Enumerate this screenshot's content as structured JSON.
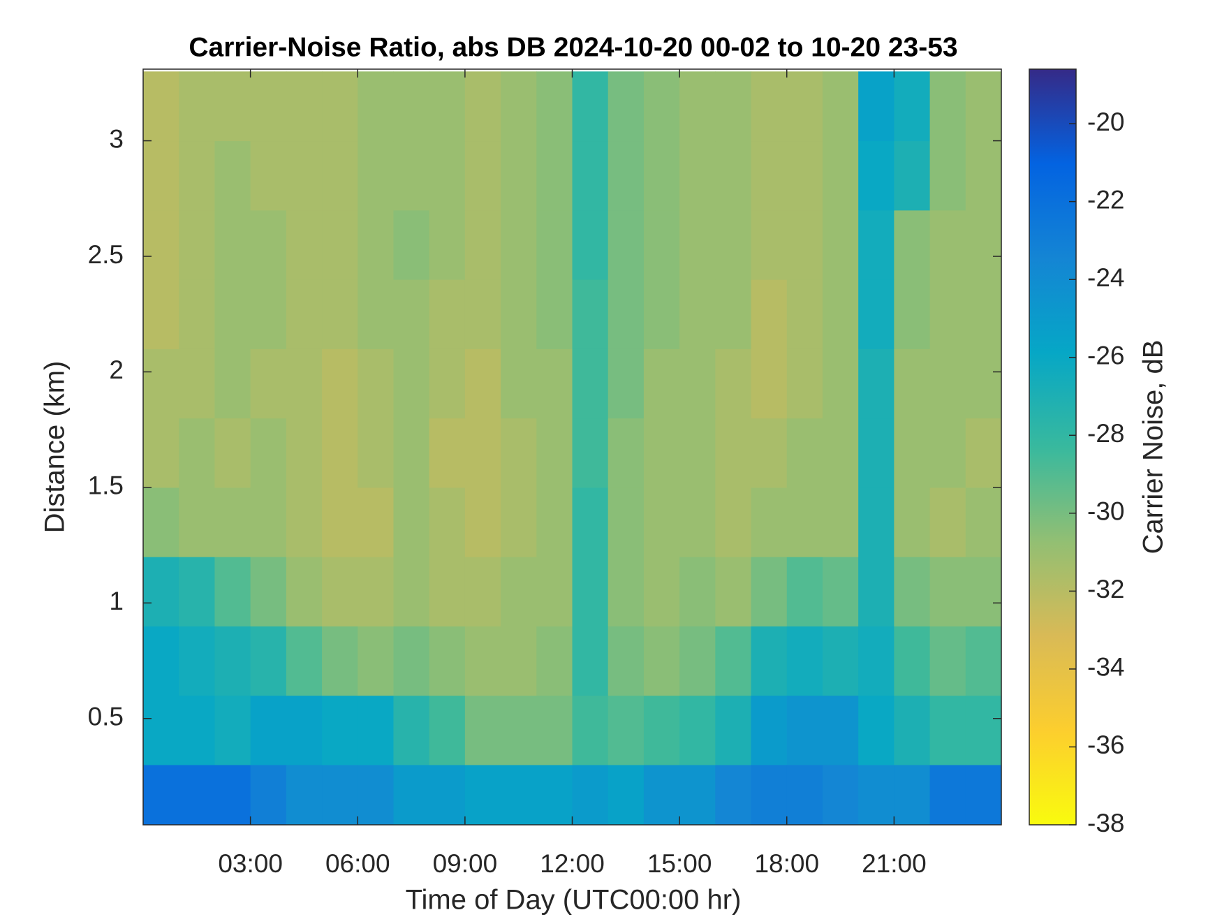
{
  "chart_data": {
    "type": "heatmap",
    "title": "Carrier-Noise Ratio, abs DB 2024-10-20 00-02 to 10-20 23-53",
    "x_label": "Time of Day (UTC00:00 hr)",
    "y_label": "Distance (km)",
    "colorbar_label": "Carrier Noise, dB",
    "x": [
      0.5,
      1.5,
      2.5,
      3.5,
      4.5,
      5.5,
      6.5,
      7.5,
      8.5,
      9.5,
      10.5,
      11.5,
      12.5,
      13.5,
      14.5,
      15.5,
      16.5,
      17.5,
      18.5,
      19.5,
      20.5,
      21.5,
      22.5,
      23.5
    ],
    "y": [
      0.15,
      0.45,
      0.75,
      1.05,
      1.35,
      1.65,
      1.95,
      2.25,
      2.55,
      2.85,
      3.15
    ],
    "values": [
      [
        -22,
        -22,
        -22,
        -23,
        -24,
        -24,
        -24,
        -25,
        -25,
        -25.5,
        -25.5,
        -25.5,
        -25,
        -25.5,
        -24.5,
        -24.5,
        -23.5,
        -23,
        -23,
        -23.5,
        -24,
        -24,
        -22.5,
        -22.5
      ],
      [
        -26,
        -26,
        -26.5,
        -25.5,
        -25.5,
        -26,
        -26,
        -27.5,
        -28.5,
        -30,
        -30,
        -30,
        -28.5,
        -29,
        -28.5,
        -28,
        -27,
        -25,
        -24.5,
        -24.5,
        -26,
        -27,
        -28,
        -28
      ],
      [
        -26,
        -26.5,
        -27,
        -27.5,
        -29,
        -30,
        -30.5,
        -30,
        -30.5,
        -31,
        -31,
        -30.5,
        -28,
        -30,
        -30.5,
        -30,
        -29,
        -27,
        -26.5,
        -27,
        -26.5,
        -28.5,
        -29.5,
        -29
      ],
      [
        -27,
        -27.5,
        -29,
        -30,
        -31,
        -31.5,
        -31.5,
        -31,
        -31.5,
        -31.5,
        -31,
        -31,
        -28,
        -30.5,
        -31,
        -30.5,
        -31,
        -30,
        -29,
        -29.5,
        -27,
        -30,
        -30.5,
        -30.5
      ],
      [
        -30.5,
        -31,
        -31,
        -31,
        -31.5,
        -32,
        -32,
        -31,
        -31.5,
        -32,
        -31.5,
        -31,
        -28,
        -30.5,
        -31,
        -31,
        -31.5,
        -31,
        -31,
        -31,
        -27,
        -31,
        -31.5,
        -31
      ],
      [
        -31.5,
        -31,
        -31.5,
        -31,
        -31.5,
        -32,
        -31.5,
        -31,
        -32,
        -32,
        -31.5,
        -31,
        -28.5,
        -30.5,
        -31,
        -31,
        -31.5,
        -31.5,
        -31,
        -31,
        -27,
        -31,
        -31,
        -31.5
      ],
      [
        -31.5,
        -31.5,
        -31,
        -31.5,
        -31.5,
        -32,
        -31.5,
        -31,
        -31.5,
        -32,
        -31,
        -31,
        -28.5,
        -30,
        -31,
        -31,
        -31.5,
        -32,
        -31.5,
        -31,
        -27,
        -31,
        -31,
        -31
      ],
      [
        -32,
        -31.5,
        -31,
        -31,
        -31.5,
        -31.5,
        -31,
        -31,
        -31.5,
        -31.5,
        -31,
        -30.5,
        -28.5,
        -30,
        -30.5,
        -31,
        -31,
        -32,
        -31.5,
        -31,
        -26.5,
        -30.5,
        -31,
        -31
      ],
      [
        -32,
        -31.5,
        -31,
        -31,
        -31.5,
        -31.5,
        -31,
        -30.5,
        -31,
        -31.5,
        -31,
        -30.5,
        -28,
        -30,
        -30.5,
        -31,
        -31,
        -31.5,
        -31.5,
        -31,
        -26.5,
        -30.5,
        -31,
        -31
      ],
      [
        -32,
        -31.5,
        -31,
        -31.5,
        -31.5,
        -31.5,
        -31,
        -31,
        -31,
        -31.5,
        -31,
        -30.5,
        -28,
        -30,
        -30.5,
        -31,
        -31,
        -31.5,
        -31.5,
        -31,
        -26,
        -27,
        -30.5,
        -31
      ],
      [
        -32,
        -31.5,
        -31.5,
        -31.5,
        -31.5,
        -31.5,
        -31,
        -31,
        -31,
        -31.5,
        -31,
        -30.5,
        -28,
        -30,
        -30.5,
        -31,
        -31,
        -31.5,
        -31.5,
        -31,
        -25.5,
        -26.5,
        -30.5,
        -31
      ]
    ],
    "xlim": [
      0,
      24
    ],
    "ylim": [
      0.04,
      3.31
    ],
    "xticks": [
      {
        "value": 3,
        "label": "03:00"
      },
      {
        "value": 6,
        "label": "06:00"
      },
      {
        "value": 9,
        "label": "09:00"
      },
      {
        "value": 12,
        "label": "12:00"
      },
      {
        "value": 15,
        "label": "15:00"
      },
      {
        "value": 18,
        "label": "18:00"
      },
      {
        "value": 21,
        "label": "21:00"
      }
    ],
    "yticks": [
      0.5,
      1,
      1.5,
      2,
      2.5,
      3
    ],
    "clim": [
      -38,
      -18.6
    ],
    "cticks": [
      -20,
      -22,
      -24,
      -26,
      -28,
      -30,
      -32,
      -34,
      -36,
      -38
    ],
    "colormap": [
      "#f9fb0e",
      "#fcce2e",
      "#d9ba56",
      "#92bf73",
      "#38b99e",
      "#06a7c6",
      "#1485d4",
      "#0363e1",
      "#352a87"
    ]
  }
}
